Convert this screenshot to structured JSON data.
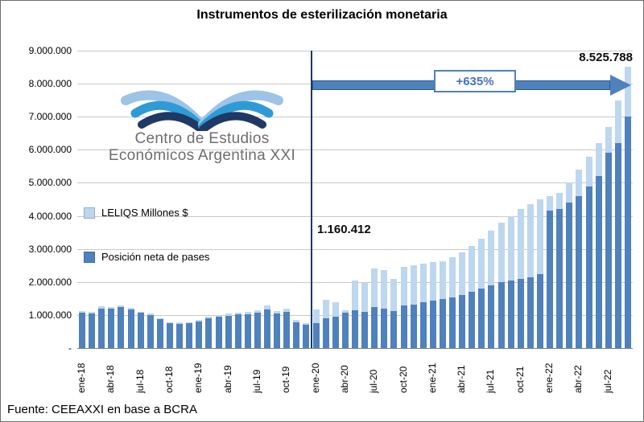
{
  "title": "Instrumentos de esterilización monetaria",
  "footer": "Fuente: CEEAXXI en base a BCRA",
  "logo": {
    "line1": "Centro de Estudios",
    "line2": "Económicos Argentina XXI"
  },
  "annotations": {
    "start_value": "1.160.412",
    "end_value": "8.525.788",
    "growth_label": "+635%"
  },
  "legend": [
    {
      "label": "LELIQS Millones $",
      "color": "#bdd7ee"
    },
    {
      "label": "Posición neta de pases",
      "color": "#4f81bd"
    }
  ],
  "colors": {
    "bar_dark": "#4f81bd",
    "bar_light": "#bdd7ee",
    "divider_line": "#1f3864",
    "arrow": "#4f81bd",
    "grid": "#c9c9c9"
  },
  "chart_data": {
    "type": "bar",
    "stacked": true,
    "title": "Instrumentos de esterilización monetaria",
    "xlabel": "",
    "ylabel": "",
    "ylim": [
      0,
      9000000
    ],
    "grid": "horizontal",
    "legend_position": "inside-left",
    "y_tick_values": [
      9000000,
      8000000,
      7000000,
      6000000,
      5000000,
      4000000,
      3000000,
      2000000,
      1000000,
      0
    ],
    "y_tick_labels": [
      "9.000.000",
      "8.000.000",
      "7.000.000",
      "6.000.000",
      "5.000.000",
      "4.000.000",
      "3.000.000",
      "2.000.000",
      "1.000.000",
      "-"
    ],
    "x": [
      "ene-18",
      "feb-18",
      "mar-18",
      "abr-18",
      "may-18",
      "jun-18",
      "jul-18",
      "ago-18",
      "sep-18",
      "oct-18",
      "nov-18",
      "dic-18",
      "ene-19",
      "feb-19",
      "mar-19",
      "abr-19",
      "may-19",
      "jun-19",
      "jul-19",
      "ago-19",
      "sep-19",
      "oct-19",
      "nov-19",
      "dic-19",
      "ene-20",
      "feb-20",
      "mar-20",
      "abr-20",
      "may-20",
      "jun-20",
      "jul-20",
      "ago-20",
      "sep-20",
      "oct-20",
      "nov-20",
      "dic-20",
      "ene-21",
      "feb-21",
      "mar-21",
      "abr-21",
      "may-21",
      "jun-21",
      "jul-21",
      "ago-21",
      "sep-21",
      "oct-21",
      "nov-21",
      "dic-21",
      "ene-22",
      "feb-22",
      "mar-22",
      "abr-22",
      "may-22",
      "jun-22",
      "jul-22",
      "ago-22",
      "sep-22"
    ],
    "x_tick_step": 3,
    "x_tick_labels": [
      "ene-18",
      "abr-18",
      "jul-18",
      "oct-18",
      "ene-19",
      "abr-19",
      "jul-19",
      "oct-19",
      "ene-20",
      "abr-20",
      "jul-20",
      "oct-20",
      "ene-21",
      "abr-21",
      "jul-21",
      "oct-21",
      "ene-22",
      "abr-22",
      "jul-22"
    ],
    "series": [
      {
        "name": "Posición neta de pases",
        "color": "#4f81bd",
        "values": [
          1080000,
          1050000,
          1200000,
          1190000,
          1230000,
          1160000,
          1060000,
          1000000,
          870000,
          760000,
          740000,
          760000,
          800000,
          890000,
          940000,
          980000,
          1010000,
          1030000,
          1070000,
          1180000,
          1040000,
          1090000,
          780000,
          700000,
          750000,
          900000,
          950000,
          1080000,
          1150000,
          1100000,
          1230000,
          1200000,
          1130000,
          1280000,
          1320000,
          1380000,
          1430000,
          1480000,
          1530000,
          1600000,
          1700000,
          1800000,
          1900000,
          2000000,
          2050000,
          2100000,
          2150000,
          2250000,
          4150000,
          4200000,
          4400000,
          4600000,
          4900000,
          5200000,
          5900000,
          6200000,
          7000000
        ]
      },
      {
        "name": "LELIQS Millones $",
        "color": "#bdd7ee",
        "values": [
          50000,
          40000,
          60000,
          60000,
          60000,
          60000,
          40000,
          40000,
          30000,
          30000,
          30000,
          30000,
          40000,
          50000,
          50000,
          60000,
          60000,
          60000,
          70000,
          100000,
          90000,
          100000,
          60000,
          60000,
          410412,
          550000,
          430000,
          70000,
          900000,
          880000,
          1170000,
          1150000,
          970000,
          1170000,
          1180000,
          1170000,
          1170000,
          1140000,
          1220000,
          1300000,
          1400000,
          1500000,
          1650000,
          1800000,
          1950000,
          2100000,
          2200000,
          2250000,
          450000,
          500000,
          600000,
          800000,
          900000,
          1000000,
          800000,
          1300000,
          1525788
        ]
      }
    ],
    "annotations": [
      {
        "text": "1.160.412",
        "at_month": "ene-20"
      },
      {
        "text": "8.525.788",
        "at_month": "sep-22"
      },
      {
        "text": "+635%",
        "type": "growth-arrow",
        "from_month": "ene-20",
        "to_month": "sep-22"
      }
    ],
    "divider_line_at_month": "ene-20"
  }
}
